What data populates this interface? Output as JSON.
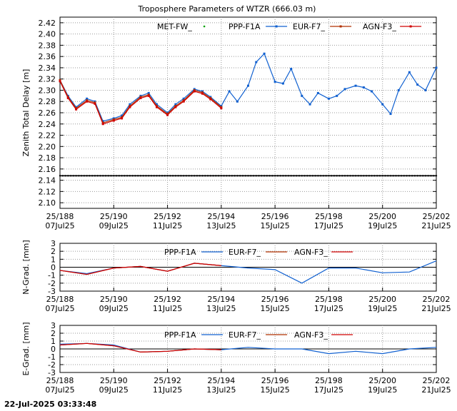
{
  "title": "Troposphere Parameters of WTZR (666.03 m)",
  "timestamp": "22-Jul-2025 03:33:48",
  "x_ticks": [
    {
      "doy": "25/188",
      "date": "07Jul25"
    },
    {
      "doy": "25/190",
      "date": "09Jul25"
    },
    {
      "doy": "25/192",
      "date": "11Jul25"
    },
    {
      "doy": "25/194",
      "date": "13Jul25"
    },
    {
      "doy": "25/196",
      "date": "15Jul25"
    },
    {
      "doy": "25/198",
      "date": "17Jul25"
    },
    {
      "doy": "25/200",
      "date": "19Jul25"
    },
    {
      "doy": "25/202",
      "date": "21Jul25"
    }
  ],
  "colors": {
    "met": "#00a000",
    "ppp": "#1060d0",
    "eur": "#b03000",
    "agn": "#d00000",
    "grid": "#999999",
    "axis": "#000000"
  },
  "chart_data": [
    {
      "id": "ztd",
      "type": "scatter",
      "ylabel": "Zenith Total Delay [m]",
      "xlim": [
        0,
        14
      ],
      "ylim": [
        2.09,
        2.43
      ],
      "yticks": [
        "2.42",
        "2.40",
        "2.38",
        "2.36",
        "2.34",
        "2.32",
        "2.30",
        "2.28",
        "2.26",
        "2.24",
        "2.22",
        "2.20",
        "2.18",
        "2.16",
        "2.14",
        "2.12",
        "2.10"
      ],
      "legend": [
        "MET-FW_",
        "PPP-F1A",
        "EUR-F7_",
        "AGN-F3_"
      ],
      "constant_series": {
        "name": "MET-FW_",
        "value": 2.148
      },
      "series": [
        {
          "name": "PPP-F1A",
          "x": [
            0,
            0.3,
            0.6,
            1,
            1.3,
            1.6,
            2,
            2.3,
            2.6,
            3,
            3.3,
            3.6,
            4,
            4.3,
            4.6,
            5,
            5.3,
            5.6,
            6,
            6.3,
            6.6,
            7,
            7.3,
            7.6,
            8,
            8.3,
            8.6,
            9,
            9.3,
            9.6,
            10,
            10.3,
            10.6,
            11,
            11.3,
            11.6,
            12,
            12.3,
            12.6,
            13,
            13.3,
            13.6,
            14
          ],
          "y": [
            2.318,
            2.29,
            2.27,
            2.285,
            2.28,
            2.245,
            2.25,
            2.255,
            2.275,
            2.29,
            2.295,
            2.275,
            2.26,
            2.275,
            2.285,
            2.302,
            2.298,
            2.288,
            2.272,
            2.298,
            2.28,
            2.308,
            2.35,
            2.365,
            2.315,
            2.312,
            2.338,
            2.29,
            2.275,
            2.295,
            2.285,
            2.29,
            2.302,
            2.308,
            2.305,
            2.298,
            2.275,
            2.258,
            2.3,
            2.332,
            2.31,
            2.3,
            2.34
          ]
        },
        {
          "name": "EUR-F7_",
          "x": [
            0,
            0.3,
            0.6,
            1,
            1.3,
            1.6,
            2,
            2.3,
            2.6,
            3,
            3.3,
            3.6,
            4,
            4.3,
            4.6,
            5,
            5.3,
            5.6,
            6
          ],
          "y": [
            2.318,
            2.288,
            2.268,
            2.282,
            2.278,
            2.242,
            2.248,
            2.252,
            2.272,
            2.288,
            2.292,
            2.272,
            2.258,
            2.272,
            2.282,
            2.3,
            2.296,
            2.286,
            2.27
          ]
        },
        {
          "name": "AGN-F3_",
          "x": [
            0,
            0.3,
            0.6,
            1,
            1.3,
            1.6,
            2,
            2.3,
            2.6,
            3,
            3.3,
            3.6,
            4,
            4.3,
            4.6,
            5,
            5.3,
            5.6,
            6
          ],
          "y": [
            2.316,
            2.286,
            2.266,
            2.28,
            2.276,
            2.24,
            2.246,
            2.25,
            2.27,
            2.286,
            2.29,
            2.27,
            2.256,
            2.27,
            2.28,
            2.298,
            2.294,
            2.284,
            2.268
          ]
        }
      ]
    },
    {
      "id": "ngrad",
      "type": "line",
      "ylabel": "N-Grad. [mm]",
      "xlim": [
        0,
        14
      ],
      "ylim": [
        -3,
        3
      ],
      "yticks": [
        "3",
        "2",
        "1",
        "0",
        "-1",
        "-2",
        "-3"
      ],
      "legend": [
        "PPP-F1A",
        "EUR-F7_",
        "AGN-F3_"
      ],
      "series": [
        {
          "name": "PPP-F1A",
          "x": [
            0,
            1,
            2,
            3,
            4,
            5,
            6,
            7,
            8,
            9,
            10,
            11,
            12,
            13,
            14
          ],
          "y": [
            -0.4,
            -0.8,
            -0.1,
            0.1,
            -0.5,
            0.5,
            0.2,
            -0.1,
            -0.3,
            -2.0,
            -0.1,
            -0.1,
            -0.7,
            -0.6,
            0.8
          ]
        },
        {
          "name": "EUR-F7_",
          "x": [
            0,
            1,
            2,
            3,
            4,
            5,
            6
          ],
          "y": [
            -0.4,
            -0.9,
            -0.1,
            0.1,
            -0.5,
            0.5,
            0.2
          ]
        },
        {
          "name": "AGN-F3_",
          "x": [
            0,
            1,
            2,
            3,
            4,
            5,
            6
          ],
          "y": [
            -0.4,
            -0.9,
            -0.1,
            0.1,
            -0.5,
            0.5,
            0.2
          ]
        }
      ]
    },
    {
      "id": "egrad",
      "type": "line",
      "ylabel": "E-Grad. [mm]",
      "xlim": [
        0,
        14
      ],
      "ylim": [
        -3,
        3
      ],
      "yticks": [
        "3",
        "2",
        "1",
        "0",
        "-1",
        "-2",
        "-3"
      ],
      "legend": [
        "PPP-F1A",
        "EUR-F7_",
        "AGN-F3_"
      ],
      "series": [
        {
          "name": "PPP-F1A",
          "x": [
            0,
            1,
            2,
            3,
            4,
            5,
            6,
            7,
            8,
            9,
            10,
            11,
            12,
            13,
            14
          ],
          "y": [
            0.6,
            0.7,
            0.5,
            -0.4,
            -0.3,
            0.0,
            -0.1,
            0.2,
            0.0,
            0.0,
            -0.6,
            -0.3,
            -0.6,
            0.0,
            0.2
          ]
        },
        {
          "name": "EUR-F7_",
          "x": [
            0,
            1,
            2,
            3,
            4,
            5,
            6
          ],
          "y": [
            0.5,
            0.7,
            0.4,
            -0.4,
            -0.3,
            0.0,
            -0.1
          ]
        },
        {
          "name": "AGN-F3_",
          "x": [
            0,
            1,
            2,
            3,
            4,
            5,
            6
          ],
          "y": [
            0.5,
            0.7,
            0.4,
            -0.4,
            -0.3,
            0.0,
            -0.1
          ]
        }
      ]
    }
  ]
}
